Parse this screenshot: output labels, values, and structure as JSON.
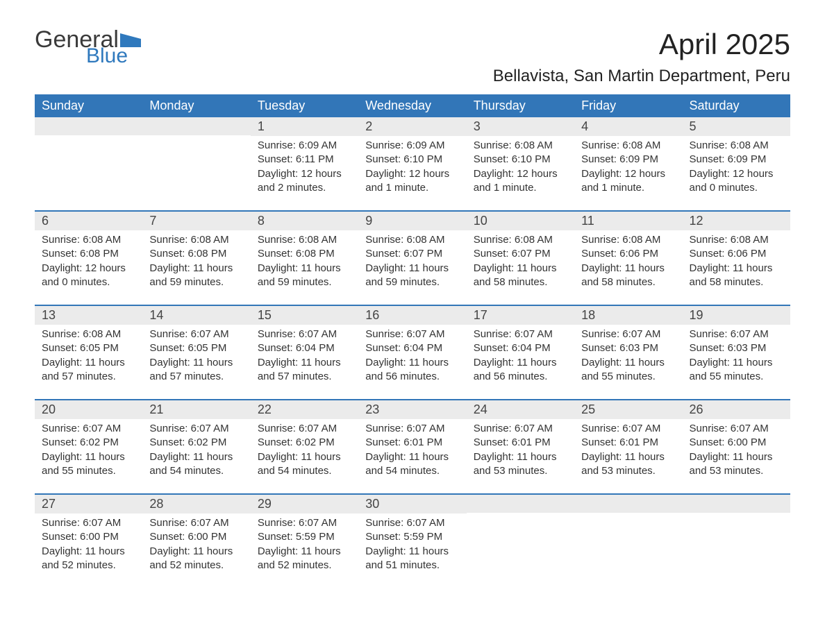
{
  "logo": {
    "general": "General",
    "blue": "Blue",
    "brand_color": "#2f79bd"
  },
  "title": "April 2025",
  "location": "Bellavista, San Martin Department, Peru",
  "colors": {
    "header_bg": "#3276b8",
    "header_text": "#ffffff",
    "daynum_bg": "#ebebeb",
    "week_border": "#3276b8",
    "text": "#333333",
    "background": "#ffffff"
  },
  "weekdays": [
    "Sunday",
    "Monday",
    "Tuesday",
    "Wednesday",
    "Thursday",
    "Friday",
    "Saturday"
  ],
  "weeks": [
    [
      {
        "n": "",
        "lines": []
      },
      {
        "n": "",
        "lines": []
      },
      {
        "n": "1",
        "lines": [
          "Sunrise: 6:09 AM",
          "Sunset: 6:11 PM",
          "Daylight: 12 hours and 2 minutes."
        ]
      },
      {
        "n": "2",
        "lines": [
          "Sunrise: 6:09 AM",
          "Sunset: 6:10 PM",
          "Daylight: 12 hours and 1 minute."
        ]
      },
      {
        "n": "3",
        "lines": [
          "Sunrise: 6:08 AM",
          "Sunset: 6:10 PM",
          "Daylight: 12 hours and 1 minute."
        ]
      },
      {
        "n": "4",
        "lines": [
          "Sunrise: 6:08 AM",
          "Sunset: 6:09 PM",
          "Daylight: 12 hours and 1 minute."
        ]
      },
      {
        "n": "5",
        "lines": [
          "Sunrise: 6:08 AM",
          "Sunset: 6:09 PM",
          "Daylight: 12 hours and 0 minutes."
        ]
      }
    ],
    [
      {
        "n": "6",
        "lines": [
          "Sunrise: 6:08 AM",
          "Sunset: 6:08 PM",
          "Daylight: 12 hours and 0 minutes."
        ]
      },
      {
        "n": "7",
        "lines": [
          "Sunrise: 6:08 AM",
          "Sunset: 6:08 PM",
          "Daylight: 11 hours and 59 minutes."
        ]
      },
      {
        "n": "8",
        "lines": [
          "Sunrise: 6:08 AM",
          "Sunset: 6:08 PM",
          "Daylight: 11 hours and 59 minutes."
        ]
      },
      {
        "n": "9",
        "lines": [
          "Sunrise: 6:08 AM",
          "Sunset: 6:07 PM",
          "Daylight: 11 hours and 59 minutes."
        ]
      },
      {
        "n": "10",
        "lines": [
          "Sunrise: 6:08 AM",
          "Sunset: 6:07 PM",
          "Daylight: 11 hours and 58 minutes."
        ]
      },
      {
        "n": "11",
        "lines": [
          "Sunrise: 6:08 AM",
          "Sunset: 6:06 PM",
          "Daylight: 11 hours and 58 minutes."
        ]
      },
      {
        "n": "12",
        "lines": [
          "Sunrise: 6:08 AM",
          "Sunset: 6:06 PM",
          "Daylight: 11 hours and 58 minutes."
        ]
      }
    ],
    [
      {
        "n": "13",
        "lines": [
          "Sunrise: 6:08 AM",
          "Sunset: 6:05 PM",
          "Daylight: 11 hours and 57 minutes."
        ]
      },
      {
        "n": "14",
        "lines": [
          "Sunrise: 6:07 AM",
          "Sunset: 6:05 PM",
          "Daylight: 11 hours and 57 minutes."
        ]
      },
      {
        "n": "15",
        "lines": [
          "Sunrise: 6:07 AM",
          "Sunset: 6:04 PM",
          "Daylight: 11 hours and 57 minutes."
        ]
      },
      {
        "n": "16",
        "lines": [
          "Sunrise: 6:07 AM",
          "Sunset: 6:04 PM",
          "Daylight: 11 hours and 56 minutes."
        ]
      },
      {
        "n": "17",
        "lines": [
          "Sunrise: 6:07 AM",
          "Sunset: 6:04 PM",
          "Daylight: 11 hours and 56 minutes."
        ]
      },
      {
        "n": "18",
        "lines": [
          "Sunrise: 6:07 AM",
          "Sunset: 6:03 PM",
          "Daylight: 11 hours and 55 minutes."
        ]
      },
      {
        "n": "19",
        "lines": [
          "Sunrise: 6:07 AM",
          "Sunset: 6:03 PM",
          "Daylight: 11 hours and 55 minutes."
        ]
      }
    ],
    [
      {
        "n": "20",
        "lines": [
          "Sunrise: 6:07 AM",
          "Sunset: 6:02 PM",
          "Daylight: 11 hours and 55 minutes."
        ]
      },
      {
        "n": "21",
        "lines": [
          "Sunrise: 6:07 AM",
          "Sunset: 6:02 PM",
          "Daylight: 11 hours and 54 minutes."
        ]
      },
      {
        "n": "22",
        "lines": [
          "Sunrise: 6:07 AM",
          "Sunset: 6:02 PM",
          "Daylight: 11 hours and 54 minutes."
        ]
      },
      {
        "n": "23",
        "lines": [
          "Sunrise: 6:07 AM",
          "Sunset: 6:01 PM",
          "Daylight: 11 hours and 54 minutes."
        ]
      },
      {
        "n": "24",
        "lines": [
          "Sunrise: 6:07 AM",
          "Sunset: 6:01 PM",
          "Daylight: 11 hours and 53 minutes."
        ]
      },
      {
        "n": "25",
        "lines": [
          "Sunrise: 6:07 AM",
          "Sunset: 6:01 PM",
          "Daylight: 11 hours and 53 minutes."
        ]
      },
      {
        "n": "26",
        "lines": [
          "Sunrise: 6:07 AM",
          "Sunset: 6:00 PM",
          "Daylight: 11 hours and 53 minutes."
        ]
      }
    ],
    [
      {
        "n": "27",
        "lines": [
          "Sunrise: 6:07 AM",
          "Sunset: 6:00 PM",
          "Daylight: 11 hours and 52 minutes."
        ]
      },
      {
        "n": "28",
        "lines": [
          "Sunrise: 6:07 AM",
          "Sunset: 6:00 PM",
          "Daylight: 11 hours and 52 minutes."
        ]
      },
      {
        "n": "29",
        "lines": [
          "Sunrise: 6:07 AM",
          "Sunset: 5:59 PM",
          "Daylight: 11 hours and 52 minutes."
        ]
      },
      {
        "n": "30",
        "lines": [
          "Sunrise: 6:07 AM",
          "Sunset: 5:59 PM",
          "Daylight: 11 hours and 51 minutes."
        ]
      },
      {
        "n": "",
        "lines": []
      },
      {
        "n": "",
        "lines": []
      },
      {
        "n": "",
        "lines": []
      }
    ]
  ]
}
